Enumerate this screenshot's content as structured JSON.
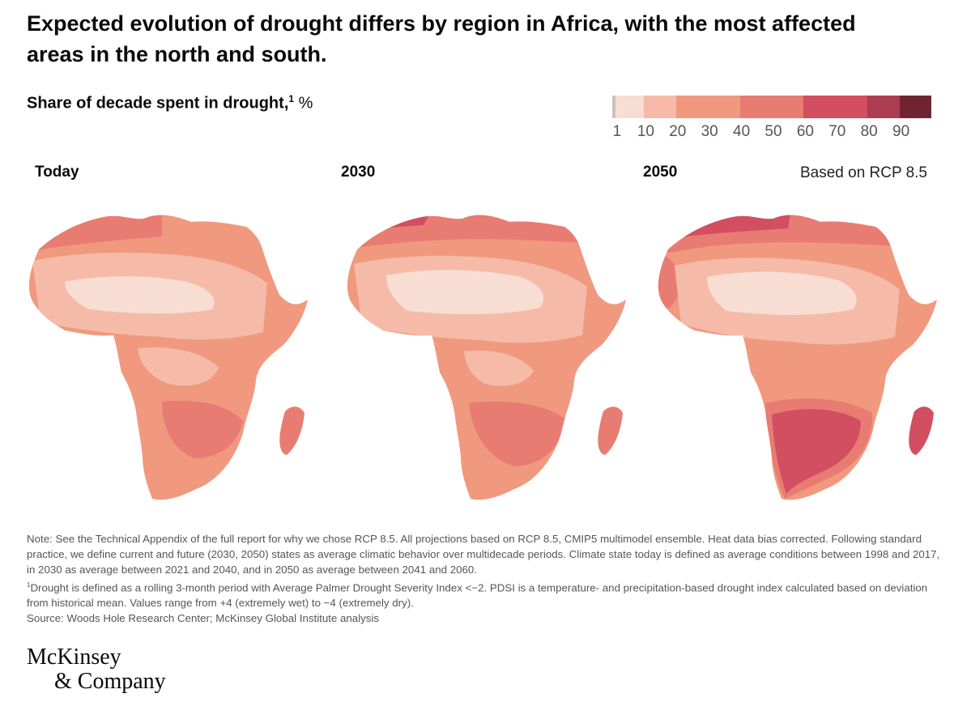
{
  "title": "Expected evolution of drought differs by region in Africa, with the most affected areas in the north and south.",
  "subtitle": {
    "text": "Share of decade spent in drought,",
    "footnote": "1",
    "unit": " %"
  },
  "legend": {
    "ticks": [
      "1",
      "10",
      "20",
      "30",
      "40",
      "50",
      "60",
      "70",
      "80",
      "90"
    ],
    "bins": [
      {
        "from": 1,
        "to": 10,
        "color": "#f8ddd2"
      },
      {
        "from": 10,
        "to": 20,
        "color": "#f5bba8"
      },
      {
        "from": 20,
        "to": 40,
        "color": "#f0997f"
      },
      {
        "from": 40,
        "to": 60,
        "color": "#e87c72"
      },
      {
        "from": 60,
        "to": 80,
        "color": "#d14f60"
      },
      {
        "from": 80,
        "to": 90,
        "color": "#ad3d50"
      },
      {
        "from": 90,
        "to": 100,
        "color": "#6f2531"
      }
    ]
  },
  "panels": [
    {
      "label": "Today"
    },
    {
      "label": "2030"
    },
    {
      "label": "2050"
    }
  ],
  "scenario_label": "Based on RCP 8.5",
  "notes": {
    "note": "Note: See the Technical Appendix of the full report for why we chose RCP 8.5. All projections based on RCP 8.5, CMIP5 multimodel ensemble. Heat data bias corrected. Following standard practice, we define current and future (2030, 2050) states as average climatic behavior over multidecade periods. Climate state today is defined as average conditions between 1998 and 2017, in 2030 as average between 2021 and 2040, and in 2050 as average between 2041 and 2060.",
    "footnote_mark": "1",
    "footnote": "Drought is defined as a rolling 3-month period with Average Palmer Drought Severity Index <−2. PDSI is a temperature- and precipitation-based drought index calculated based on deviation from historical mean. Values range from +4 (extremely wet) to −4 (extremely dry).",
    "source": "Source: Woods Hole Research Center; McKinsey Global Institute analysis"
  },
  "logo": {
    "line1": "McKinsey",
    "line2": "& Company"
  }
}
